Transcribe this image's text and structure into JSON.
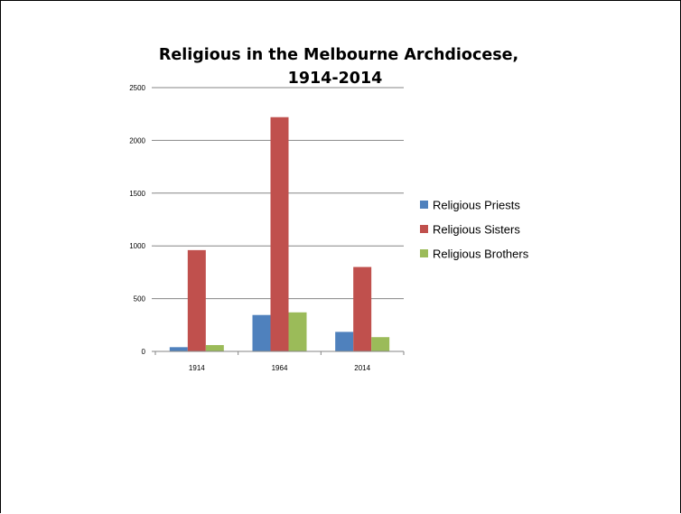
{
  "chart_data": {
    "type": "bar",
    "title_lines": [
      "Religious in the Melbourne Archdiocese,",
      "1914-2014"
    ],
    "xlabel": "",
    "ylabel": "",
    "categories": [
      "1914",
      "1964",
      "2014"
    ],
    "series": [
      {
        "name": "Religious Priests",
        "color": "#4f81bd",
        "values": [
          40,
          345,
          185
        ]
      },
      {
        "name": "Religious Sisters",
        "color": "#c0504d",
        "values": [
          960,
          2220,
          800
        ]
      },
      {
        "name": "Religious Brothers",
        "color": "#9bbb59",
        "values": [
          60,
          370,
          135
        ]
      }
    ],
    "ylim": [
      0,
      2500
    ],
    "yticks": [
      "0",
      "500",
      "1000",
      "1500",
      "2000",
      "2500"
    ],
    "grid": true,
    "legend_position": "right"
  }
}
